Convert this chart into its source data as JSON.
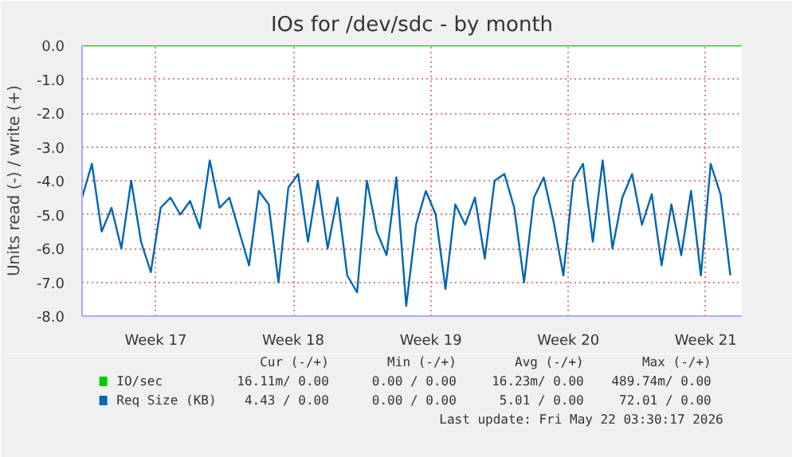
{
  "chart_data": {
    "type": "line",
    "title": "IOs for /dev/sdc - by month",
    "ylabel": "Units read (-) / write (+)",
    "xlim": [
      "2026-04-19T12:00",
      "2026-05-23T02:00"
    ],
    "xticks": [
      {
        "value": "2026-04-23T06:00",
        "label": "Week 17"
      },
      {
        "value": "2026-04-30T06:00",
        "label": "Week 18"
      },
      {
        "value": "2026-05-07T06:00",
        "label": "Week 19"
      },
      {
        "value": "2026-05-14T06:00",
        "label": "Week 20"
      },
      {
        "value": "2026-05-21T06:00",
        "label": "Week 21"
      }
    ],
    "ylim": [
      -8,
      0
    ],
    "yticks": [
      {
        "value": -8,
        "label": "-8.0"
      },
      {
        "value": -7,
        "label": "-7.0"
      },
      {
        "value": -6,
        "label": "-6.0"
      },
      {
        "value": -5,
        "label": "-5.0"
      },
      {
        "value": -4,
        "label": "-4.0"
      },
      {
        "value": -3,
        "label": "-3.0"
      },
      {
        "value": -2,
        "label": "-2.0"
      },
      {
        "value": -1,
        "label": "-1.0"
      },
      {
        "value": 0,
        "label": "0.0"
      }
    ],
    "grid": true,
    "legend": "bottom",
    "series": [
      {
        "name": "IO/sec",
        "color": "#00cc00",
        "x": [
          "2026-04-19T12:00",
          "2026-05-23T02:00"
        ],
        "values": [
          0,
          0
        ]
      },
      {
        "name": "Req Size (KB)",
        "color": "#0066b3",
        "x": [
          "2026-04-19T12:00",
          "2026-04-20T00:00",
          "2026-04-20T12:00",
          "2026-04-21T00:00",
          "2026-04-21T12:00",
          "2026-04-22T00:00",
          "2026-04-22T12:00",
          "2026-04-23T00:00",
          "2026-04-23T12:00",
          "2026-04-24T00:00",
          "2026-04-24T12:00",
          "2026-04-25T00:00",
          "2026-04-25T12:00",
          "2026-04-26T00:00",
          "2026-04-26T12:00",
          "2026-04-27T00:00",
          "2026-04-27T12:00",
          "2026-04-28T00:00",
          "2026-04-28T12:00",
          "2026-04-29T00:00",
          "2026-04-29T12:00",
          "2026-04-30T00:00",
          "2026-04-30T12:00",
          "2026-05-01T00:00",
          "2026-05-01T12:00",
          "2026-05-02T00:00",
          "2026-05-02T12:00",
          "2026-05-03T00:00",
          "2026-05-03T12:00",
          "2026-05-04T00:00",
          "2026-05-04T12:00",
          "2026-05-05T00:00",
          "2026-05-05T12:00",
          "2026-05-06T00:00",
          "2026-05-06T12:00",
          "2026-05-07T00:00",
          "2026-05-07T12:00",
          "2026-05-08T00:00",
          "2026-05-08T12:00",
          "2026-05-09T00:00",
          "2026-05-09T12:00",
          "2026-05-10T00:00",
          "2026-05-10T12:00",
          "2026-05-11T00:00",
          "2026-05-11T12:00",
          "2026-05-12T00:00",
          "2026-05-12T12:00",
          "2026-05-13T00:00",
          "2026-05-13T12:00",
          "2026-05-14T00:00",
          "2026-05-14T12:00",
          "2026-05-15T00:00",
          "2026-05-15T12:00",
          "2026-05-16T00:00",
          "2026-05-16T12:00",
          "2026-05-17T00:00",
          "2026-05-17T12:00",
          "2026-05-18T00:00",
          "2026-05-18T12:00",
          "2026-05-19T00:00",
          "2026-05-19T12:00",
          "2026-05-20T00:00",
          "2026-05-20T12:00",
          "2026-05-21T00:00",
          "2026-05-21T12:00",
          "2026-05-22T00:00",
          "2026-05-22T12:00"
        ],
        "values": [
          -4.5,
          -3.5,
          -5.5,
          -4.8,
          -6.0,
          -4.0,
          -5.8,
          -6.7,
          -4.8,
          -4.5,
          -5.0,
          -4.6,
          -5.4,
          -3.4,
          -4.8,
          -4.5,
          -5.5,
          -6.5,
          -4.3,
          -4.7,
          -7.0,
          -4.2,
          -3.8,
          -5.8,
          -4.0,
          -6.0,
          -4.5,
          -6.8,
          -7.3,
          -4.0,
          -5.5,
          -6.2,
          -3.9,
          -7.7,
          -5.3,
          -4.3,
          -5.0,
          -7.2,
          -4.7,
          -5.3,
          -4.5,
          -6.3,
          -4.0,
          -3.8,
          -4.8,
          -7.0,
          -4.5,
          -3.9,
          -5.2,
          -6.8,
          -4.0,
          -3.5,
          -5.8,
          -3.4,
          -6.0,
          -4.5,
          -3.8,
          -5.3,
          -4.4,
          -6.5,
          -4.7,
          -6.2,
          -4.3,
          -6.8,
          -3.5,
          -4.4,
          -6.8
        ]
      }
    ],
    "annotations": [
      "Cur (-/+)",
      "Min (-/+)",
      "Avg (-/+)",
      "Max (-/+)",
      "16.11m/ 0.00",
      "0.00 / 0.00",
      "16.23m/ 0.00",
      "489.74m/ 0.00",
      "4.43 / 0.00",
      "0.00 / 0.00",
      "5.01 / 0.00",
      "72.01 / 0.00",
      "Last update: Fri May 22 03:30:17 2026"
    ]
  }
}
